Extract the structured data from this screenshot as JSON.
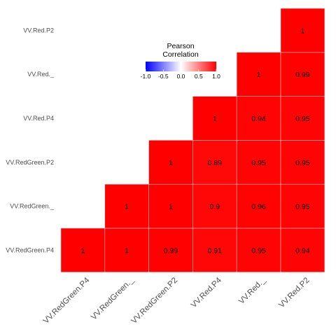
{
  "chart_data": {
    "type": "heatmap",
    "subtype": "lower-triangle correlation matrix",
    "x_categories": [
      "VV.RedGreen.P4",
      "VV.RedGreen._",
      "VV.RedGreen.P2",
      "VV.Red.P4",
      "VV.Red._",
      "VV.Red.P2"
    ],
    "y_categories": [
      "VV.RedGreen.P4",
      "VV.RedGreen._",
      "VV.RedGreen.P2",
      "VV.Red.P4",
      "VV.Red._",
      "VV.Red.P2"
    ],
    "x_tick_labels": [
      "VV.RedGreen.P4",
      "VV.RedGreen._",
      "VV.RedGreen.P2",
      "VV.Red.P4",
      "VV.Red._",
      "VV.Red.P2"
    ],
    "cells": [
      {
        "x": "VV.RedGreen.P4",
        "y": "VV.RedGreen.P4",
        "value": 1,
        "label": "1"
      },
      {
        "x": "VV.RedGreen._",
        "y": "VV.RedGreen.P4",
        "value": 1,
        "label": "1"
      },
      {
        "x": "VV.RedGreen.P2",
        "y": "VV.RedGreen.P4",
        "value": 0.99,
        "label": "0.99"
      },
      {
        "x": "VV.Red.P4",
        "y": "VV.RedGreen.P4",
        "value": 0.91,
        "label": "0.91"
      },
      {
        "x": "VV.Red._",
        "y": "VV.RedGreen.P4",
        "value": 0.95,
        "label": "0.95"
      },
      {
        "x": "VV.Red.P2",
        "y": "VV.RedGreen.P4",
        "value": 0.94,
        "label": "0.94"
      },
      {
        "x": "VV.RedGreen._",
        "y": "VV.RedGreen._",
        "value": 1,
        "label": "1"
      },
      {
        "x": "VV.RedGreen.P2",
        "y": "VV.RedGreen._",
        "value": 1,
        "label": "1"
      },
      {
        "x": "VV.Red.P4",
        "y": "VV.RedGreen._",
        "value": 0.9,
        "label": "0.9"
      },
      {
        "x": "VV.Red._",
        "y": "VV.RedGreen._",
        "value": 0.96,
        "label": "0.96"
      },
      {
        "x": "VV.Red.P2",
        "y": "VV.RedGreen._",
        "value": 0.95,
        "label": "0.95"
      },
      {
        "x": "VV.RedGreen.P2",
        "y": "VV.RedGreen.P2",
        "value": 1,
        "label": "1"
      },
      {
        "x": "VV.Red.P4",
        "y": "VV.RedGreen.P2",
        "value": 0.89,
        "label": "0.89"
      },
      {
        "x": "VV.Red._",
        "y": "VV.RedGreen.P2",
        "value": 0.95,
        "label": "0.95"
      },
      {
        "x": "VV.Red.P2",
        "y": "VV.RedGreen.P2",
        "value": 0.95,
        "label": "0.95"
      },
      {
        "x": "VV.Red.P4",
        "y": "VV.Red.P4",
        "value": 1,
        "label": "1"
      },
      {
        "x": "VV.Red._",
        "y": "VV.Red.P4",
        "value": 0.94,
        "label": "0.94"
      },
      {
        "x": "VV.Red.P2",
        "y": "VV.Red.P4",
        "value": 0.95,
        "label": "0.95"
      },
      {
        "x": "VV.Red._",
        "y": "VV.Red._",
        "value": 1,
        "label": "1"
      },
      {
        "x": "VV.Red.P2",
        "y": "VV.Red._",
        "value": 0.99,
        "label": "0.99"
      },
      {
        "x": "VV.Red.P2",
        "y": "VV.Red.P2",
        "value": 1,
        "label": "1"
      }
    ],
    "legend": {
      "title_lines": [
        "Pearson",
        "Correlation"
      ],
      "ticks": [
        "-1.0",
        "-0.5",
        "0.0",
        "0.5",
        "1.0"
      ],
      "range": [
        -1,
        1
      ],
      "position": "top-center (inside plot)"
    },
    "colors": {
      "low": "#0000ff",
      "mid": "#ffffff",
      "high": "#ff0000",
      "cell_border": "#f2c4bf"
    },
    "grid": false
  }
}
